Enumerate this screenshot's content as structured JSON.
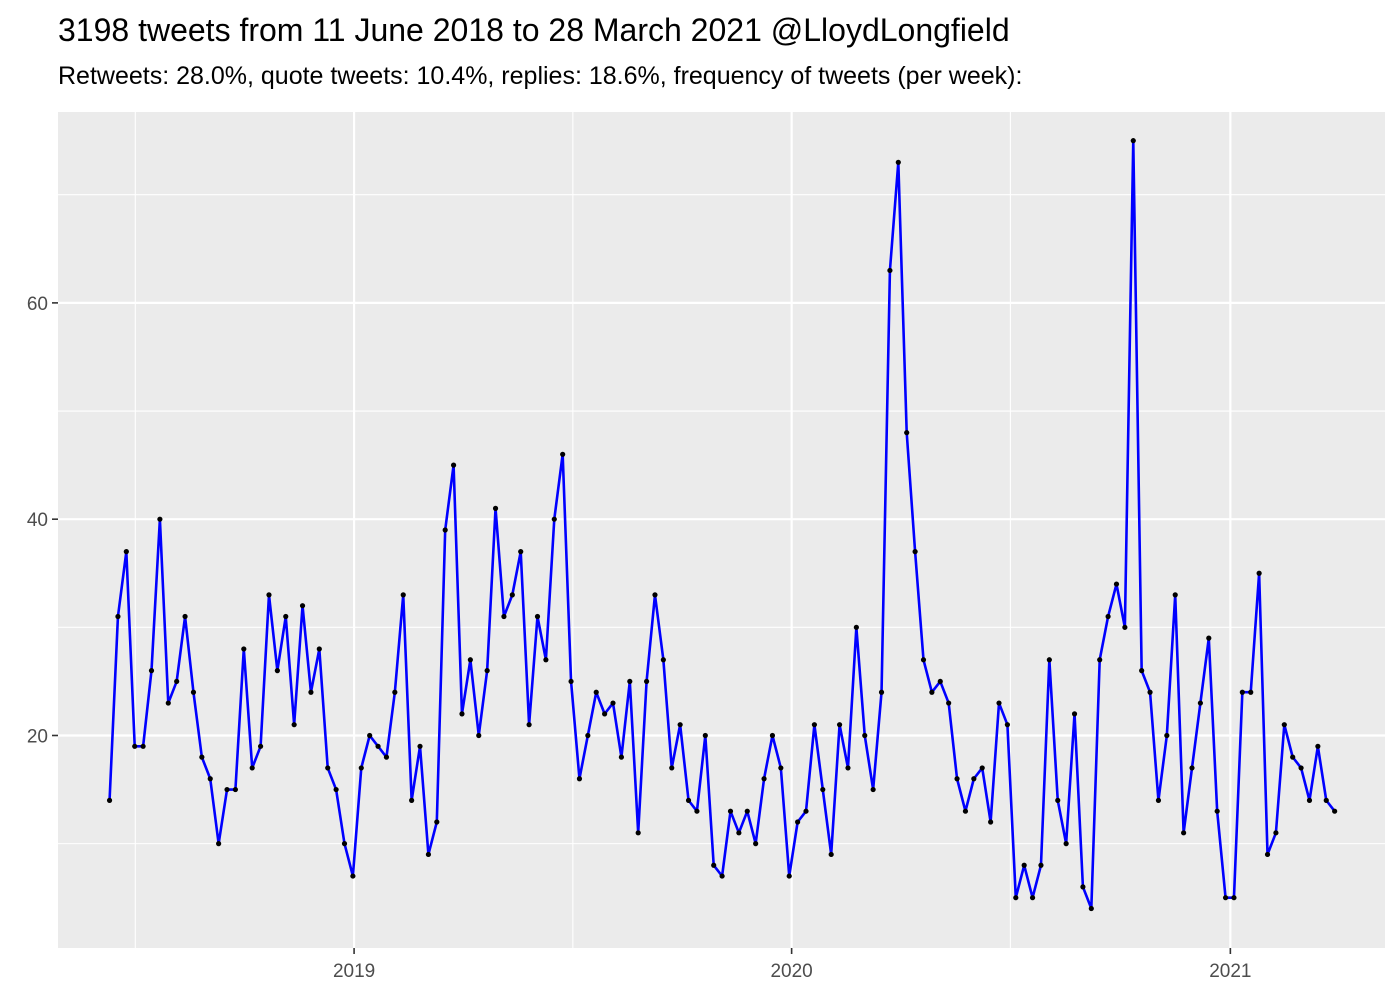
{
  "chart_data": {
    "type": "line",
    "title": "3198 tweets from 11 June 2018 to 28 March 2021 @LloydLongfield",
    "subtitle": "Retweets: 28.0%, quote tweets: 10.4%, replies: 18.6%, frequency of tweets (per week):",
    "xlabel": "",
    "ylabel": "",
    "x_ticks": [
      {
        "date": "2019-01-01",
        "label": "2019"
      },
      {
        "date": "2020-01-01",
        "label": "2020"
      },
      {
        "date": "2021-01-01",
        "label": "2021"
      }
    ],
    "y_ticks": [
      20,
      40,
      60
    ],
    "xlim": [
      "2018-04-29",
      "2021-05-10"
    ],
    "ylim": [
      0.35,
      77.65
    ],
    "grid": true,
    "line_color": "#0000ff",
    "point_color": "#000000",
    "panel_color": "#ebebeb",
    "series": [
      {
        "start_date": "2018-06-11",
        "interval_days": 7,
        "values": [
          14,
          31,
          37,
          19,
          19,
          26,
          40,
          23,
          25,
          31,
          24,
          18,
          16,
          10,
          15,
          15,
          28,
          17,
          19,
          33,
          26,
          31,
          21,
          32,
          24,
          28,
          17,
          15,
          10,
          7,
          17,
          20,
          19,
          18,
          24,
          33,
          14,
          19,
          9,
          12,
          39,
          45,
          22,
          27,
          20,
          26,
          41,
          31,
          33,
          37,
          21,
          31,
          27,
          40,
          46,
          25,
          16,
          20,
          24,
          22,
          23,
          18,
          25,
          11,
          25,
          33,
          27,
          17,
          21,
          14,
          13,
          20,
          8,
          7,
          13,
          11,
          13,
          10,
          16,
          20,
          17,
          7,
          12,
          13,
          21,
          15,
          9,
          21,
          17,
          30,
          20,
          15,
          24,
          63,
          73,
          48,
          37,
          27,
          24,
          25,
          23,
          16,
          13,
          16,
          17,
          12,
          23,
          21,
          5,
          8,
          5,
          8,
          27,
          14,
          10,
          22,
          6,
          4,
          27,
          31,
          34,
          30,
          75,
          26,
          24,
          14,
          20,
          33,
          11,
          17,
          23,
          29,
          13,
          5,
          5,
          24,
          24,
          35,
          9,
          11,
          21,
          18,
          17,
          14,
          19,
          14,
          13
        ]
      }
    ]
  }
}
